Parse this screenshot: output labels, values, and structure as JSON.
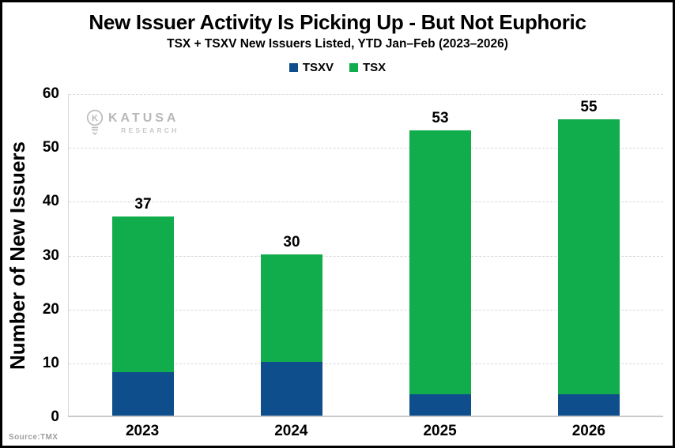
{
  "header": {
    "title": "New Issuer Activity Is Picking Up - But Not Euphoric",
    "subtitle": "TSX + TSXV New Issuers Listed, YTD Jan–Feb (2023–2026)"
  },
  "watermark": {
    "brand": "KATUSA",
    "sub": "RESEARCH"
  },
  "source": "Source:TMX",
  "colors": {
    "tsxv_blue": "#0F4E8C",
    "tsx_green": "#11AD4D",
    "gridline": "#d9d9d9",
    "watermark_gray": "#b5b5b5"
  },
  "chart_data": {
    "type": "bar",
    "stacked": true,
    "title": "New Issuer Activity Is Picking Up - But Not Euphoric",
    "subtitle": "TSX + TSXV New Issuers Listed, YTD Jan–Feb (2023–2026)",
    "categories": [
      "2023",
      "2024",
      "2025",
      "2026"
    ],
    "series": [
      {
        "name": "TSXV",
        "color": "#0F4E8C",
        "values": [
          8,
          10,
          4,
          4
        ]
      },
      {
        "name": "TSX",
        "color": "#11AD4D",
        "values": [
          29,
          20,
          49,
          51
        ]
      }
    ],
    "totals": [
      37,
      30,
      53,
      55
    ],
    "xlabel": "",
    "ylabel": "Number of New Issuers",
    "ylim": [
      0,
      60
    ],
    "yticks": [
      0,
      10,
      20,
      30,
      40,
      50,
      60
    ],
    "grid": "horizontal-dashed",
    "legend_position": "top"
  }
}
